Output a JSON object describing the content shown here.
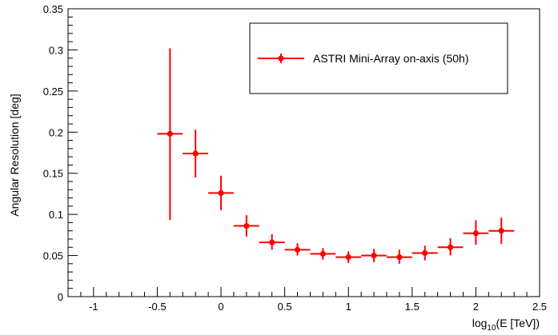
{
  "chart_data": {
    "type": "scatter",
    "title": "",
    "xlabel": {
      "base": "log",
      "sub": "10",
      "rest": "(E [TeV])"
    },
    "ylabel": "Angular Resolution [deg]",
    "xlim": [
      -1.2,
      2.5
    ],
    "ylim": [
      0,
      0.35
    ],
    "x_ticks": [
      -1,
      -0.5,
      0,
      0.5,
      1,
      1.5,
      2,
      2.5
    ],
    "x_tick_labels": [
      "-1",
      "-0.5",
      "0",
      "0.5",
      "1",
      "1.5",
      "2",
      "2.5"
    ],
    "y_ticks": [
      0,
      0.05,
      0.1,
      0.15,
      0.2,
      0.25,
      0.3,
      0.35
    ],
    "y_tick_labels": [
      "0",
      "0.05",
      "0.1",
      "0.15",
      "0.2",
      "0.25",
      "0.3",
      "0.35"
    ],
    "grid": false,
    "legend_position": "top-right",
    "color": "#ff0000",
    "series": [
      {
        "name": "ASTRI Mini-Array on-axis (50h)",
        "points": [
          {
            "x": -0.4,
            "y": 0.198,
            "xerr": 0.1,
            "ylo": 0.093,
            "yhi": 0.302
          },
          {
            "x": -0.2,
            "y": 0.174,
            "xerr": 0.1,
            "ylo": 0.145,
            "yhi": 0.203
          },
          {
            "x": 0.0,
            "y": 0.126,
            "xerr": 0.1,
            "ylo": 0.105,
            "yhi": 0.147
          },
          {
            "x": 0.2,
            "y": 0.086,
            "xerr": 0.1,
            "ylo": 0.073,
            "yhi": 0.099
          },
          {
            "x": 0.4,
            "y": 0.066,
            "xerr": 0.1,
            "ylo": 0.057,
            "yhi": 0.076
          },
          {
            "x": 0.6,
            "y": 0.057,
            "xerr": 0.1,
            "ylo": 0.05,
            "yhi": 0.065
          },
          {
            "x": 0.8,
            "y": 0.052,
            "xerr": 0.1,
            "ylo": 0.045,
            "yhi": 0.059
          },
          {
            "x": 1.0,
            "y": 0.048,
            "xerr": 0.1,
            "ylo": 0.041,
            "yhi": 0.055
          },
          {
            "x": 1.2,
            "y": 0.05,
            "xerr": 0.1,
            "ylo": 0.042,
            "yhi": 0.058
          },
          {
            "x": 1.4,
            "y": 0.048,
            "xerr": 0.1,
            "ylo": 0.04,
            "yhi": 0.057
          },
          {
            "x": 1.6,
            "y": 0.053,
            "xerr": 0.1,
            "ylo": 0.044,
            "yhi": 0.062
          },
          {
            "x": 1.8,
            "y": 0.06,
            "xerr": 0.1,
            "ylo": 0.05,
            "yhi": 0.071
          },
          {
            "x": 2.0,
            "y": 0.077,
            "xerr": 0.1,
            "ylo": 0.063,
            "yhi": 0.093
          },
          {
            "x": 2.2,
            "y": 0.08,
            "xerr": 0.1,
            "ylo": 0.064,
            "yhi": 0.096
          }
        ]
      }
    ]
  }
}
